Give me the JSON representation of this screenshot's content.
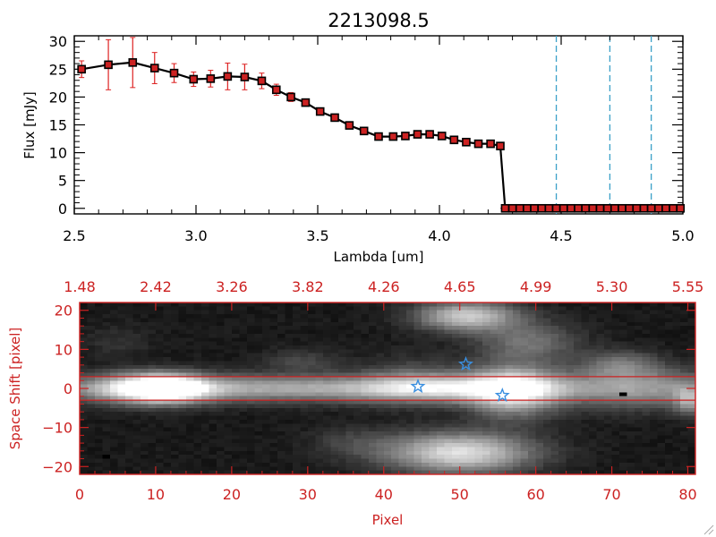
{
  "colors": {
    "axis_black": "#000000",
    "axis_red": "#cc2222",
    "spectrum_line": "#000000",
    "spectrum_marker": "#cc2222",
    "error_bar": "#dd2222",
    "reference_line": "#3aa0c8",
    "slit_line": "#cc2222",
    "star_marker": "#3a8fe0"
  },
  "chart_data": [
    {
      "type": "line",
      "title": "2213098.5",
      "xlabel": "Lambda [um]",
      "ylabel": "Flux [mJy]",
      "xlim": [
        2.5,
        5.0
      ],
      "ylim": [
        -1,
        31
      ],
      "xticks": [
        2.5,
        3.0,
        3.5,
        4.0,
        4.5,
        5.0
      ],
      "xtick_labels": [
        "2.5",
        "3.0",
        "3.5",
        "4.0",
        "4.5",
        "5.0"
      ],
      "yticks": [
        0,
        5,
        10,
        15,
        20,
        25,
        30
      ],
      "ytick_labels": [
        "0",
        "5",
        "10",
        "15",
        "20",
        "25",
        "30"
      ],
      "grid": false,
      "series": [
        {
          "x": [
            2.53,
            2.64,
            2.74,
            2.83,
            2.91,
            2.99,
            3.06,
            3.13,
            3.2,
            3.27,
            3.33,
            3.39,
            3.45,
            3.51,
            3.57,
            3.63,
            3.69,
            3.75,
            3.81,
            3.86,
            3.91,
            3.96,
            4.01,
            4.06,
            4.11,
            4.16,
            4.21,
            4.25,
            4.27,
            4.3,
            4.33,
            4.36,
            4.39,
            4.42,
            4.45,
            4.48,
            4.51,
            4.54,
            4.57,
            4.6,
            4.63,
            4.66,
            4.69,
            4.72,
            4.75,
            4.78,
            4.81,
            4.84,
            4.87,
            4.9,
            4.93,
            4.96,
            4.99
          ],
          "y": [
            25.0,
            25.8,
            26.2,
            25.2,
            24.3,
            23.2,
            23.3,
            23.7,
            23.6,
            22.9,
            21.3,
            20.0,
            19.0,
            17.4,
            16.3,
            14.9,
            13.9,
            12.9,
            12.9,
            13.0,
            13.3,
            13.3,
            13.0,
            12.3,
            11.9,
            11.6,
            11.6,
            11.2,
            0,
            0,
            0,
            0,
            0,
            0,
            0,
            0,
            0,
            0,
            0,
            0,
            0,
            0,
            0,
            0,
            0,
            0,
            0,
            0,
            0,
            0,
            0,
            0,
            0
          ],
          "yerr": [
            1.5,
            4.5,
            4.5,
            2.8,
            1.7,
            1.3,
            1.5,
            2.4,
            2.3,
            1.4,
            1.0,
            0.8,
            0.6,
            0.6,
            0.5,
            0.5,
            0.5,
            0.4,
            0.4,
            0.4,
            0.4,
            0.4,
            0.4,
            0.4,
            0.4,
            0.4,
            0.4,
            0.4,
            0,
            0,
            0,
            0,
            0,
            0,
            0,
            0,
            0,
            0,
            0,
            0,
            0,
            0,
            0,
            0,
            0,
            0,
            0,
            0,
            0,
            0,
            0,
            0,
            0
          ]
        }
      ],
      "vertical_lines": [
        4.48,
        4.7,
        4.87
      ],
      "horizontal_lines": [
        0
      ]
    },
    {
      "type": "heatmap",
      "xlabel": "Pixel",
      "ylabel": "Space Shift [pixel]",
      "xlim": [
        0,
        81
      ],
      "ylim": [
        -22,
        22
      ],
      "xticks": [
        0,
        10,
        20,
        30,
        40,
        50,
        60,
        70,
        80
      ],
      "xtick_labels": [
        "0",
        "10",
        "20",
        "30",
        "40",
        "50",
        "60",
        "70",
        "80"
      ],
      "yticks": [
        -20,
        -10,
        0,
        10,
        20
      ],
      "ytick_labels": [
        "−20",
        "−10",
        "0",
        "10",
        "20"
      ],
      "top_axis_ticks": [
        0,
        10,
        20,
        30,
        40,
        50,
        60,
        70,
        80
      ],
      "top_axis_labels": [
        "1.48",
        "2.42",
        "3.26",
        "3.82",
        "4.26",
        "4.65",
        "4.99",
        "5.30",
        "5.55"
      ],
      "colormap": "grayscale",
      "slit_lines": [
        3,
        -3
      ],
      "sources": [
        {
          "x": 10,
          "y": 0,
          "sigma_x": 4.5,
          "sigma_y": 2.6,
          "amp": 1.0
        },
        {
          "x": 12,
          "y": 0,
          "sigma_x": 2.2,
          "sigma_y": 1.6,
          "amp": 0.55
        },
        {
          "x": 23,
          "y": 0,
          "sigma_x": 24,
          "sigma_y": 2.3,
          "amp": 0.55
        },
        {
          "x": 50,
          "y": 0,
          "sigma_x": 9,
          "sigma_y": 2.2,
          "amp": 0.45
        },
        {
          "x": 57,
          "y": -0.5,
          "sigma_x": 4,
          "sigma_y": 4.5,
          "amp": 0.75
        },
        {
          "x": 74,
          "y": 0,
          "sigma_x": 8,
          "sigma_y": 3.5,
          "amp": 0.45
        },
        {
          "x": 80,
          "y": -3,
          "sigma_x": 1.2,
          "sigma_y": 2.5,
          "amp": 0.4
        },
        {
          "x": 51,
          "y": 18.5,
          "sigma_x": 4.5,
          "sigma_y": 2.6,
          "amp": 0.7
        },
        {
          "x": 59,
          "y": 12,
          "sigma_x": 4.5,
          "sigma_y": 3.5,
          "amp": 0.32
        },
        {
          "x": 71,
          "y": 6,
          "sigma_x": 3.5,
          "sigma_y": 2.5,
          "amp": 0.32
        },
        {
          "x": 29,
          "y": 7,
          "sigma_x": 3.5,
          "sigma_y": 2,
          "amp": 0.16
        },
        {
          "x": 44,
          "y": 2,
          "sigma_x": 5,
          "sigma_y": 4,
          "amp": 0.22
        },
        {
          "x": 50,
          "y": -16.5,
          "sigma_x": 6.5,
          "sigma_y": 3.5,
          "amp": 0.8
        },
        {
          "x": 36,
          "y": -14,
          "sigma_x": 4,
          "sigma_y": 3,
          "amp": 0.14
        },
        {
          "x": 5,
          "y": 12,
          "sigma_x": 3,
          "sigma_y": 3,
          "amp": 0.08
        }
      ],
      "dark_pixels": [
        [
          71,
          -1
        ],
        [
          3,
          -17
        ]
      ],
      "stars": [
        [
          44.5,
          0.5
        ],
        [
          50.8,
          6.2
        ],
        [
          55.6,
          -1.8
        ]
      ]
    }
  ]
}
